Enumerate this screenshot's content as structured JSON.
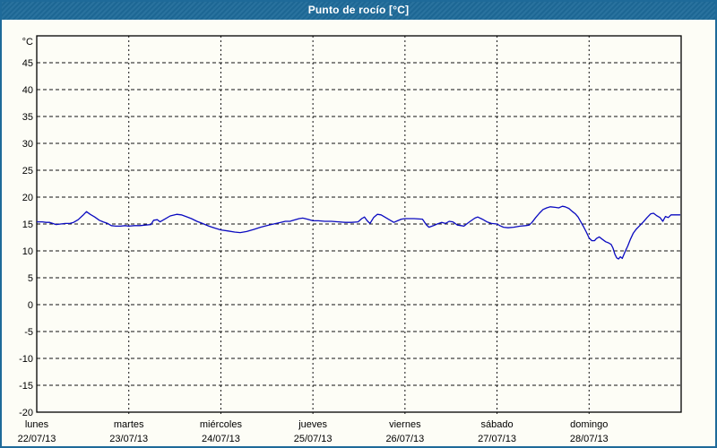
{
  "window": {
    "title": "Punto de rocío [°C]",
    "titlebar_color": "#1e6a99",
    "border_color": "#1e6a99"
  },
  "chart_data": {
    "type": "line",
    "title": "Punto de rocío [°C]",
    "unit_label": "°C",
    "ylabel": "°C",
    "ylim": [
      -20,
      50
    ],
    "ytick_step": 5,
    "yticks": [
      45,
      40,
      35,
      30,
      25,
      20,
      15,
      10,
      5,
      0,
      -5,
      -10,
      -15,
      -20
    ],
    "xlim_days": [
      0,
      7
    ],
    "grid": "dashed",
    "legend": "none",
    "line_color": "#0a0ac0",
    "x_days": [
      {
        "name": "lunes",
        "date": "22/07/13"
      },
      {
        "name": "martes",
        "date": "23/07/13"
      },
      {
        "name": "miércoles",
        "date": "24/07/13"
      },
      {
        "name": "jueves",
        "date": "25/07/13"
      },
      {
        "name": "viernes",
        "date": "26/07/13"
      },
      {
        "name": "sábado",
        "date": "27/07/13"
      },
      {
        "name": "domingo",
        "date": "28/07/13"
      }
    ],
    "series": [
      {
        "name": "Punto de rocío",
        "points": [
          [
            0.0,
            15.4
          ],
          [
            0.06,
            15.4
          ],
          [
            0.1,
            15.3
          ],
          [
            0.14,
            15.3
          ],
          [
            0.21,
            14.9
          ],
          [
            0.26,
            15.0
          ],
          [
            0.31,
            15.1
          ],
          [
            0.36,
            15.1
          ],
          [
            0.4,
            15.3
          ],
          [
            0.45,
            15.8
          ],
          [
            0.5,
            16.6
          ],
          [
            0.54,
            17.3
          ],
          [
            0.58,
            16.8
          ],
          [
            0.63,
            16.3
          ],
          [
            0.68,
            15.7
          ],
          [
            0.72,
            15.4
          ],
          [
            0.77,
            15.1
          ],
          [
            0.81,
            14.7
          ],
          [
            0.86,
            14.6
          ],
          [
            0.91,
            14.6
          ],
          [
            0.96,
            14.7
          ],
          [
            1.0,
            14.6
          ],
          [
            1.06,
            14.7
          ],
          [
            1.12,
            14.7
          ],
          [
            1.18,
            14.8
          ],
          [
            1.24,
            14.9
          ],
          [
            1.27,
            15.7
          ],
          [
            1.31,
            15.8
          ],
          [
            1.34,
            15.4
          ],
          [
            1.39,
            15.9
          ],
          [
            1.45,
            16.5
          ],
          [
            1.52,
            16.8
          ],
          [
            1.57,
            16.7
          ],
          [
            1.62,
            16.4
          ],
          [
            1.68,
            16.0
          ],
          [
            1.74,
            15.5
          ],
          [
            1.8,
            15.1
          ],
          [
            1.87,
            14.6
          ],
          [
            1.94,
            14.2
          ],
          [
            2.0,
            13.9
          ],
          [
            2.08,
            13.7
          ],
          [
            2.15,
            13.5
          ],
          [
            2.21,
            13.4
          ],
          [
            2.28,
            13.6
          ],
          [
            2.36,
            14.0
          ],
          [
            2.43,
            14.4
          ],
          [
            2.52,
            14.8
          ],
          [
            2.6,
            15.1
          ],
          [
            2.65,
            15.3
          ],
          [
            2.7,
            15.5
          ],
          [
            2.75,
            15.5
          ],
          [
            2.79,
            15.7
          ],
          [
            2.85,
            16.0
          ],
          [
            2.89,
            16.1
          ],
          [
            2.94,
            15.9
          ],
          [
            3.0,
            15.6
          ],
          [
            3.06,
            15.6
          ],
          [
            3.13,
            15.5
          ],
          [
            3.2,
            15.5
          ],
          [
            3.28,
            15.4
          ],
          [
            3.35,
            15.3
          ],
          [
            3.42,
            15.3
          ],
          [
            3.49,
            15.4
          ],
          [
            3.53,
            16.0
          ],
          [
            3.56,
            16.3
          ],
          [
            3.59,
            15.6
          ],
          [
            3.62,
            15.1
          ],
          [
            3.66,
            16.2
          ],
          [
            3.7,
            16.8
          ],
          [
            3.74,
            16.7
          ],
          [
            3.79,
            16.2
          ],
          [
            3.85,
            15.6
          ],
          [
            3.88,
            15.3
          ],
          [
            3.92,
            15.6
          ],
          [
            3.96,
            15.9
          ],
          [
            4.0,
            16.0
          ],
          [
            4.1,
            16.0
          ],
          [
            4.19,
            15.9
          ],
          [
            4.23,
            14.9
          ],
          [
            4.26,
            14.4
          ],
          [
            4.31,
            14.7
          ],
          [
            4.35,
            15.0
          ],
          [
            4.4,
            15.3
          ],
          [
            4.44,
            15.1
          ],
          [
            4.48,
            15.5
          ],
          [
            4.52,
            15.4
          ],
          [
            4.57,
            14.8
          ],
          [
            4.61,
            14.7
          ],
          [
            4.64,
            14.6
          ],
          [
            4.7,
            15.4
          ],
          [
            4.76,
            16.1
          ],
          [
            4.79,
            16.3
          ],
          [
            4.84,
            15.9
          ],
          [
            4.89,
            15.4
          ],
          [
            4.94,
            15.1
          ],
          [
            5.0,
            15.0
          ],
          [
            5.03,
            14.7
          ],
          [
            5.07,
            14.4
          ],
          [
            5.12,
            14.3
          ],
          [
            5.18,
            14.4
          ],
          [
            5.25,
            14.6
          ],
          [
            5.31,
            14.7
          ],
          [
            5.35,
            14.8
          ],
          [
            5.38,
            15.3
          ],
          [
            5.42,
            16.2
          ],
          [
            5.46,
            17.0
          ],
          [
            5.5,
            17.7
          ],
          [
            5.54,
            18.0
          ],
          [
            5.58,
            18.2
          ],
          [
            5.63,
            18.1
          ],
          [
            5.67,
            18.0
          ],
          [
            5.71,
            18.3
          ],
          [
            5.74,
            18.2
          ],
          [
            5.78,
            17.9
          ],
          [
            5.82,
            17.3
          ],
          [
            5.85,
            16.9
          ],
          [
            5.88,
            16.3
          ],
          [
            5.91,
            15.4
          ],
          [
            5.94,
            14.5
          ],
          [
            5.97,
            13.5
          ],
          [
            6.0,
            12.4
          ],
          [
            6.03,
            11.9
          ],
          [
            6.06,
            11.9
          ],
          [
            6.08,
            12.3
          ],
          [
            6.11,
            12.6
          ],
          [
            6.14,
            12.2
          ],
          [
            6.18,
            11.7
          ],
          [
            6.21,
            11.5
          ],
          [
            6.24,
            11.2
          ],
          [
            6.26,
            10.5
          ],
          [
            6.28,
            9.4
          ],
          [
            6.3,
            8.7
          ],
          [
            6.32,
            8.5
          ],
          [
            6.34,
            8.9
          ],
          [
            6.36,
            8.6
          ],
          [
            6.39,
            9.8
          ],
          [
            6.42,
            10.9
          ],
          [
            6.45,
            12.2
          ],
          [
            6.48,
            13.3
          ],
          [
            6.51,
            14.0
          ],
          [
            6.55,
            14.7
          ],
          [
            6.59,
            15.4
          ],
          [
            6.63,
            16.2
          ],
          [
            6.67,
            16.9
          ],
          [
            6.7,
            17.0
          ],
          [
            6.73,
            16.6
          ],
          [
            6.77,
            16.2
          ],
          [
            6.8,
            15.5
          ],
          [
            6.83,
            16.4
          ],
          [
            6.86,
            16.2
          ],
          [
            6.89,
            16.7
          ],
          [
            6.95,
            16.7
          ],
          [
            6.99,
            16.7
          ]
        ]
      }
    ]
  }
}
